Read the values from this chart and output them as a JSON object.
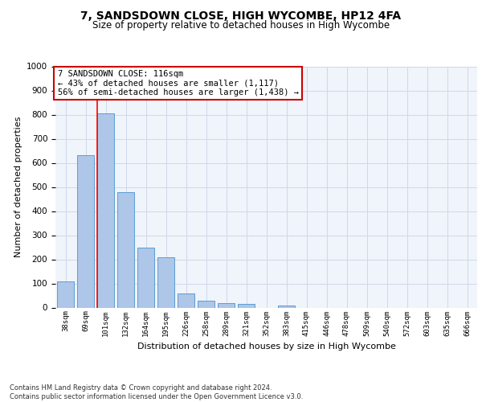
{
  "title": "7, SANDSDOWN CLOSE, HIGH WYCOMBE, HP12 4FA",
  "subtitle": "Size of property relative to detached houses in High Wycombe",
  "xlabel": "Distribution of detached houses by size in High Wycombe",
  "ylabel": "Number of detached properties",
  "categories": [
    "38sqm",
    "69sqm",
    "101sqm",
    "132sqm",
    "164sqm",
    "195sqm",
    "226sqm",
    "258sqm",
    "289sqm",
    "321sqm",
    "352sqm",
    "383sqm",
    "415sqm",
    "446sqm",
    "478sqm",
    "509sqm",
    "540sqm",
    "572sqm",
    "603sqm",
    "635sqm",
    "666sqm"
  ],
  "values": [
    110,
    632,
    805,
    478,
    250,
    207,
    60,
    28,
    20,
    15,
    0,
    10,
    0,
    0,
    0,
    0,
    0,
    0,
    0,
    0,
    0
  ],
  "bar_color": "#aec6e8",
  "bar_edge_color": "#5a9fd4",
  "red_line_index": 2,
  "annotation_text": "7 SANDSDOWN CLOSE: 116sqm\n← 43% of detached houses are smaller (1,117)\n56% of semi-detached houses are larger (1,438) →",
  "annotation_box_color": "#ffffff",
  "annotation_box_edge_color": "#cc0000",
  "footer": "Contains HM Land Registry data © Crown copyright and database right 2024.\nContains public sector information licensed under the Open Government Licence v3.0.",
  "ylim": [
    0,
    1000
  ],
  "yticks": [
    0,
    100,
    200,
    300,
    400,
    500,
    600,
    700,
    800,
    900,
    1000
  ],
  "grid_color": "#d0d8e8",
  "background_color": "#f0f4fb",
  "fig_background": "#ffffff"
}
